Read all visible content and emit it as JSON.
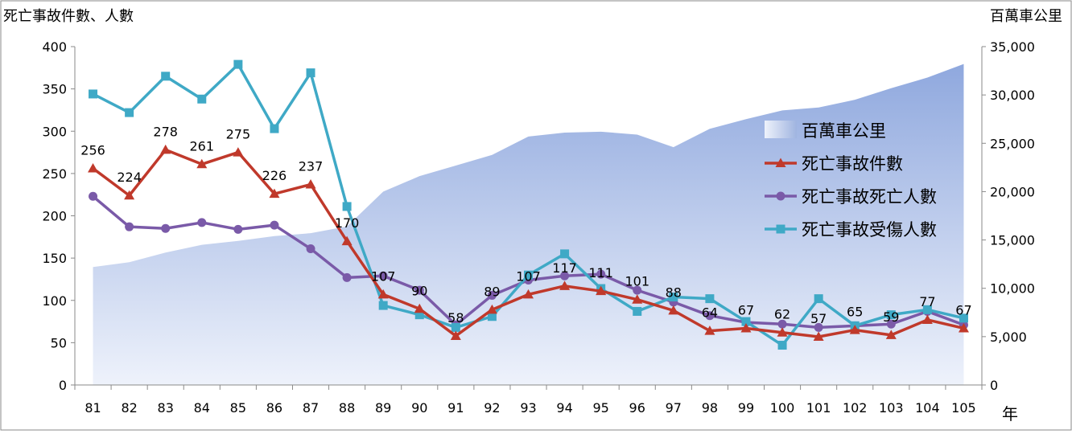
{
  "chart_data": {
    "type": "line",
    "title": "",
    "y_left_label": "死亡事故件數、人數",
    "y_right_label": "百萬車公里",
    "x_unit_label": "年",
    "categories": [
      "81",
      "82",
      "83",
      "84",
      "85",
      "86",
      "87",
      "88",
      "89",
      "90",
      "91",
      "92",
      "93",
      "94",
      "95",
      "96",
      "97",
      "98",
      "99",
      "100",
      "101",
      "102",
      "103",
      "104",
      "105"
    ],
    "ylim_left": [
      0,
      400
    ],
    "yticks_left": [
      "0",
      "50",
      "100",
      "150",
      "200",
      "250",
      "300",
      "350",
      "400"
    ],
    "ylim_right": [
      0,
      35000
    ],
    "yticks_right": [
      "0",
      "5,000",
      "10,000",
      "15,000",
      "20,000",
      "25,000",
      "30,000",
      "35,000"
    ],
    "area_series": {
      "name": "百萬車公里",
      "color": "#9fb4e0",
      "values": [
        12200,
        12700,
        13700,
        14500,
        14900,
        15400,
        15700,
        16400,
        20000,
        21600,
        22700,
        23800,
        25700,
        26100,
        26200,
        25900,
        24600,
        26500,
        27500,
        28400,
        28700,
        29500,
        30700,
        31800,
        33200
      ]
    },
    "series": [
      {
        "name": "死亡事故件數",
        "color": "#c0392b",
        "marker": "triangle",
        "values": [
          256,
          224,
          278,
          261,
          275,
          226,
          237,
          170,
          107,
          90,
          58,
          89,
          107,
          117,
          111,
          101,
          88,
          64,
          67,
          62,
          57,
          65,
          59,
          77,
          67
        ],
        "data_labels": [
          "256",
          "224",
          "278",
          "261",
          "275",
          "226",
          "237",
          "170",
          "107",
          "90",
          "58",
          "89",
          "107",
          "117",
          "111",
          "101",
          "88",
          "64",
          "67",
          "62",
          "57",
          "65",
          "59",
          "77",
          "67"
        ]
      },
      {
        "name": "死亡事故死亡人數",
        "color": "#7a5aa8",
        "marker": "circle",
        "values": [
          223,
          187,
          185,
          192,
          184,
          189,
          161,
          127,
          129,
          112,
          71,
          106,
          124,
          129,
          131,
          112,
          98,
          82,
          74,
          72,
          68,
          70,
          72,
          87,
          71
        ]
      },
      {
        "name": "死亡事故受傷人數",
        "color": "#3fa9c6",
        "marker": "square",
        "values": [
          344,
          322,
          365,
          338,
          379,
          303,
          369,
          211,
          94,
          83,
          68,
          81,
          130,
          155,
          114,
          87,
          104,
          102,
          75,
          47,
          102,
          70,
          83,
          89,
          79
        ]
      }
    ],
    "legend_position": "right"
  }
}
